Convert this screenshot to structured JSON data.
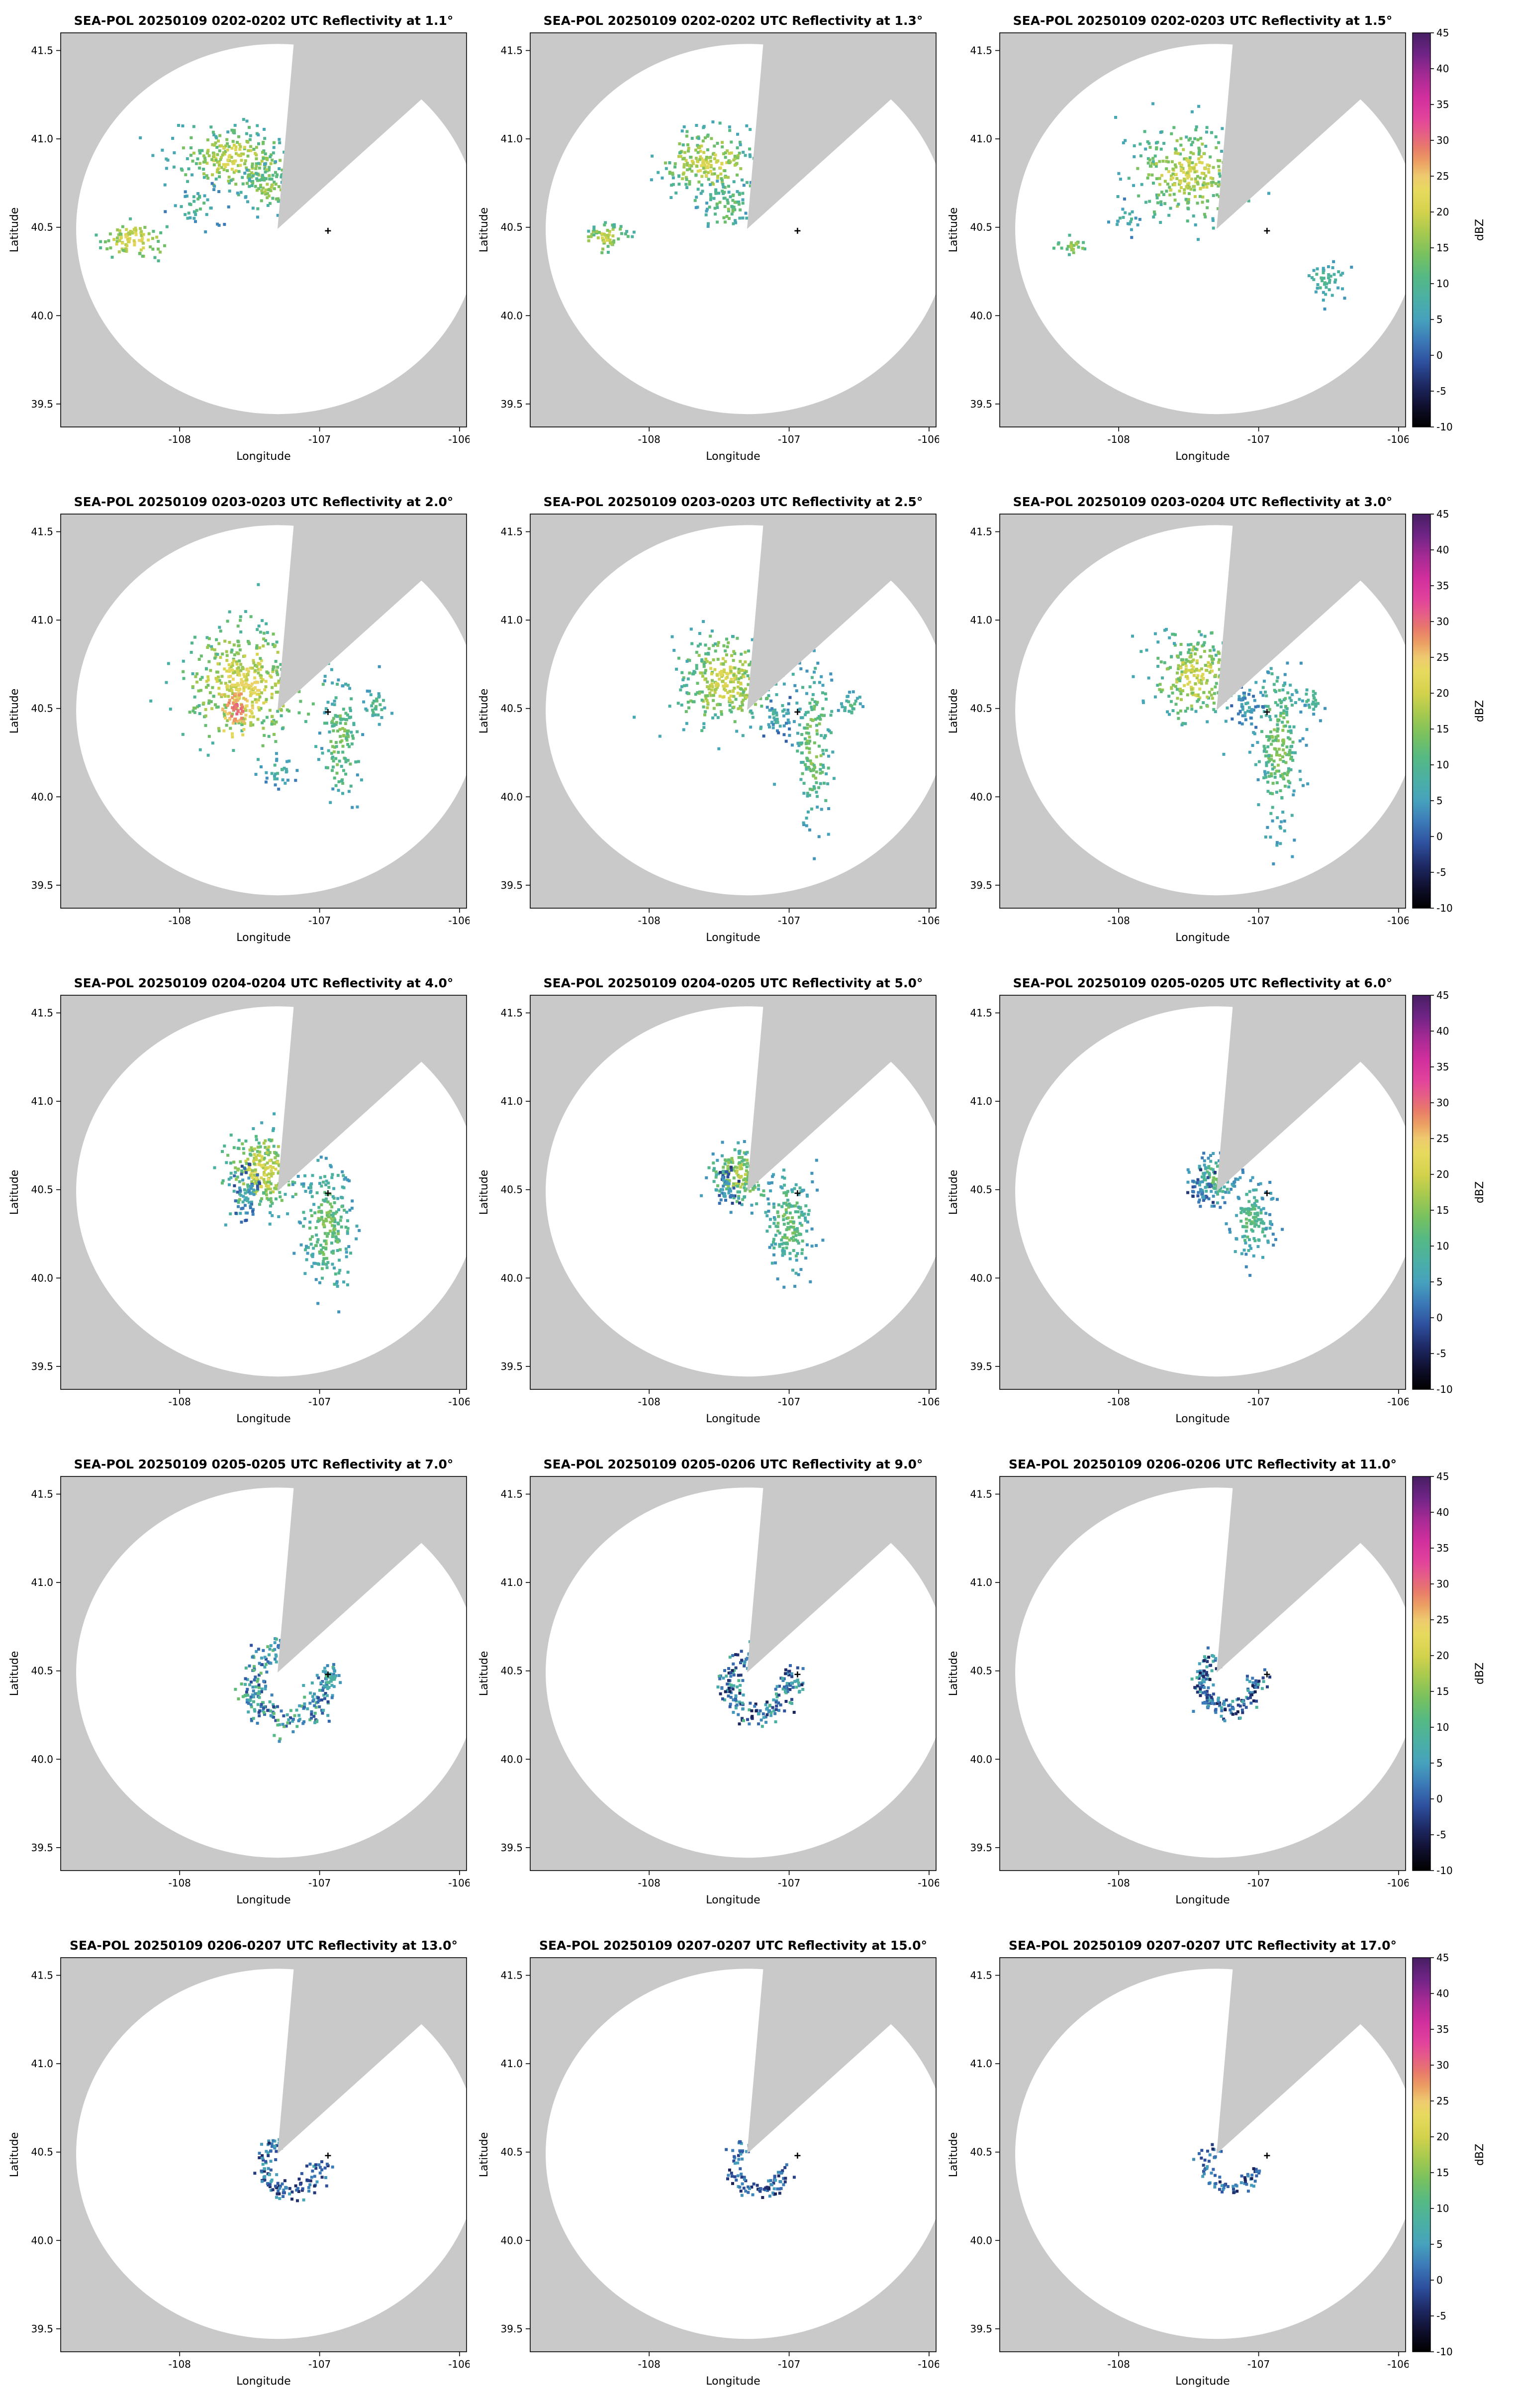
{
  "figure": {
    "background": "#ffffff",
    "panel_bg": "#c9c9c9",
    "rows": 5,
    "cols": 3
  },
  "axes": {
    "xlabel": "Longitude",
    "ylabel": "Latitude",
    "xticks": [
      "-108",
      "-107",
      "-106"
    ],
    "yticks": [
      "39.5",
      "40.0",
      "40.5",
      "41.0",
      "41.5"
    ],
    "xlim": [
      -108.85,
      -105.95
    ],
    "ylim": [
      39.37,
      41.6
    ]
  },
  "radar": {
    "center_lon": -107.3,
    "center_lat": 40.49,
    "scan_circle_color": "#ffffff",
    "blocked_sector_azimuth_deg": [
      5,
      48
    ],
    "site_marker": {
      "lon": -106.94,
      "lat": 40.48
    }
  },
  "colorbar": {
    "label": "dBZ",
    "min": -10,
    "max": 45,
    "ticks": [
      45,
      40,
      35,
      30,
      25,
      20,
      15,
      10,
      5,
      0,
      -5,
      -10
    ]
  },
  "colormap": [
    [
      -10,
      "#000000"
    ],
    [
      -7,
      "#101030"
    ],
    [
      -4,
      "#1e2a66"
    ],
    [
      -1,
      "#2e509e"
    ],
    [
      2,
      "#3b79b7"
    ],
    [
      5,
      "#46a2bd"
    ],
    [
      8,
      "#4bb0a4"
    ],
    [
      11,
      "#55b984"
    ],
    [
      14,
      "#77c160"
    ],
    [
      17,
      "#a5c94f"
    ],
    [
      20,
      "#d3d24c"
    ],
    [
      23,
      "#e7da5e"
    ],
    [
      25,
      "#eeca6f"
    ],
    [
      27,
      "#ec9f63"
    ],
    [
      29,
      "#e87a6a"
    ],
    [
      31,
      "#e55e86"
    ],
    [
      33,
      "#e2449b"
    ],
    [
      36,
      "#d12f9d"
    ],
    [
      39,
      "#a62a94"
    ],
    [
      42,
      "#702486"
    ],
    [
      45,
      "#471f63"
    ]
  ],
  "chart_data": [
    {
      "type": "heatmap",
      "title": "SEA-POL 20250109 0202-0202 UTC Reflectivity at 1.1°",
      "date": "20250109",
      "time_utc": "0202-0202",
      "elevation_deg": 1.1,
      "xlabel": "Longitude",
      "ylabel": "Latitude",
      "clim": [
        -10,
        45
      ],
      "colorbar_label": "dBZ",
      "echo_clusters": [
        {
          "kind": "blob",
          "lon": -107.62,
          "lat": 40.88,
          "sx": 0.21,
          "sy": 0.09,
          "n": 260,
          "dbz": [
            6,
            22
          ]
        },
        {
          "kind": "blob",
          "lon": -107.36,
          "lat": 40.72,
          "sx": 0.1,
          "sy": 0.07,
          "n": 90,
          "dbz": [
            5,
            18
          ]
        },
        {
          "kind": "blob",
          "lon": -108.33,
          "lat": 40.42,
          "sx": 0.11,
          "sy": 0.05,
          "n": 90,
          "dbz": [
            10,
            24
          ]
        },
        {
          "kind": "blob",
          "lon": -107.85,
          "lat": 40.62,
          "sx": 0.1,
          "sy": 0.06,
          "n": 40,
          "dbz": [
            2,
            12
          ]
        }
      ]
    },
    {
      "type": "heatmap",
      "title": "SEA-POL 20250109 0202-0202 UTC Reflectivity at 1.3°",
      "date": "20250109",
      "time_utc": "0202-0202",
      "elevation_deg": 1.3,
      "xlabel": "Longitude",
      "ylabel": "Latitude",
      "clim": [
        -10,
        45
      ],
      "colorbar_label": "dBZ",
      "echo_clusters": [
        {
          "kind": "blob",
          "lon": -107.58,
          "lat": 40.86,
          "sx": 0.18,
          "sy": 0.1,
          "n": 230,
          "dbz": [
            6,
            22
          ]
        },
        {
          "kind": "blob",
          "lon": -107.45,
          "lat": 40.62,
          "sx": 0.08,
          "sy": 0.07,
          "n": 70,
          "dbz": [
            4,
            16
          ]
        },
        {
          "kind": "blob",
          "lon": -108.3,
          "lat": 40.44,
          "sx": 0.09,
          "sy": 0.04,
          "n": 60,
          "dbz": [
            8,
            21
          ]
        }
      ]
    },
    {
      "type": "heatmap",
      "title": "SEA-POL 20250109 0202-0203 UTC Reflectivity at 1.5°",
      "date": "20250109",
      "time_utc": "0202-0203",
      "elevation_deg": 1.5,
      "xlabel": "Longitude",
      "ylabel": "Latitude",
      "clim": [
        -10,
        45
      ],
      "colorbar_label": "dBZ",
      "echo_clusters": [
        {
          "kind": "blob",
          "lon": -107.52,
          "lat": 40.8,
          "sx": 0.2,
          "sy": 0.13,
          "n": 300,
          "dbz": [
            6,
            22
          ]
        },
        {
          "kind": "blob",
          "lon": -108.33,
          "lat": 40.4,
          "sx": 0.06,
          "sy": 0.03,
          "n": 25,
          "dbz": [
            8,
            18
          ]
        },
        {
          "kind": "blob",
          "lon": -106.52,
          "lat": 40.2,
          "sx": 0.07,
          "sy": 0.05,
          "n": 45,
          "dbz": [
            4,
            12
          ]
        },
        {
          "kind": "blob",
          "lon": -107.95,
          "lat": 40.55,
          "sx": 0.06,
          "sy": 0.04,
          "n": 20,
          "dbz": [
            2,
            10
          ]
        }
      ]
    },
    {
      "type": "heatmap",
      "title": "SEA-POL 20250109 0203-0203 UTC Reflectivity at 2.0°",
      "date": "20250109",
      "time_utc": "0203-0203",
      "elevation_deg": 2.0,
      "xlabel": "Longitude",
      "ylabel": "Latitude",
      "clim": [
        -10,
        45
      ],
      "colorbar_label": "dBZ",
      "echo_clusters": [
        {
          "kind": "blob",
          "lon": -107.52,
          "lat": 40.63,
          "sx": 0.22,
          "sy": 0.16,
          "n": 420,
          "dbz": [
            8,
            24
          ]
        },
        {
          "kind": "blob",
          "lon": -107.6,
          "lat": 40.5,
          "sx": 0.06,
          "sy": 0.06,
          "n": 70,
          "dbz": [
            22,
            31
          ]
        },
        {
          "kind": "blob",
          "lon": -106.85,
          "lat": 40.32,
          "sx": 0.07,
          "sy": 0.18,
          "n": 130,
          "dbz": [
            4,
            16
          ]
        },
        {
          "kind": "blob",
          "lon": -106.6,
          "lat": 40.52,
          "sx": 0.05,
          "sy": 0.05,
          "n": 30,
          "dbz": [
            4,
            12
          ]
        },
        {
          "kind": "blob",
          "lon": -107.3,
          "lat": 40.15,
          "sx": 0.08,
          "sy": 0.05,
          "n": 30,
          "dbz": [
            2,
            10
          ]
        }
      ]
    },
    {
      "type": "heatmap",
      "title": "SEA-POL 20250109 0203-0203 UTC Reflectivity at 2.5°",
      "date": "20250109",
      "time_utc": "0203-0203",
      "elevation_deg": 2.5,
      "xlabel": "Longitude",
      "ylabel": "Latitude",
      "clim": [
        -10,
        45
      ],
      "colorbar_label": "dBZ",
      "echo_clusters": [
        {
          "kind": "blob",
          "lon": -107.45,
          "lat": 40.65,
          "sx": 0.18,
          "sy": 0.13,
          "n": 330,
          "dbz": [
            6,
            22
          ]
        },
        {
          "kind": "blob",
          "lon": -106.82,
          "lat": 40.28,
          "sx": 0.07,
          "sy": 0.22,
          "n": 170,
          "dbz": [
            4,
            16
          ]
        },
        {
          "kind": "blob",
          "lon": -107.08,
          "lat": 40.45,
          "sx": 0.05,
          "sy": 0.05,
          "n": 40,
          "dbz": [
            0,
            10
          ]
        },
        {
          "kind": "blob",
          "lon": -106.55,
          "lat": 40.52,
          "sx": 0.04,
          "sy": 0.04,
          "n": 25,
          "dbz": [
            4,
            12
          ]
        }
      ]
    },
    {
      "type": "heatmap",
      "title": "SEA-POL 20250109 0203-0204 UTC Reflectivity at 3.0°",
      "date": "20250109",
      "time_utc": "0203-0204",
      "elevation_deg": 3.0,
      "xlabel": "Longitude",
      "ylabel": "Latitude",
      "clim": [
        -10,
        45
      ],
      "colorbar_label": "dBZ",
      "echo_clusters": [
        {
          "kind": "blob",
          "lon": -107.45,
          "lat": 40.68,
          "sx": 0.16,
          "sy": 0.12,
          "n": 260,
          "dbz": [
            6,
            22
          ]
        },
        {
          "kind": "blob",
          "lon": -106.85,
          "lat": 40.3,
          "sx": 0.08,
          "sy": 0.24,
          "n": 230,
          "dbz": [
            4,
            16
          ]
        },
        {
          "kind": "blob",
          "lon": -107.08,
          "lat": 40.5,
          "sx": 0.05,
          "sy": 0.05,
          "n": 45,
          "dbz": [
            0,
            8
          ]
        },
        {
          "kind": "blob",
          "lon": -106.62,
          "lat": 40.55,
          "sx": 0.04,
          "sy": 0.04,
          "n": 25,
          "dbz": [
            4,
            12
          ]
        }
      ]
    },
    {
      "type": "heatmap",
      "title": "SEA-POL 20250109 0204-0204 UTC Reflectivity at 4.0°",
      "date": "20250109",
      "time_utc": "0204-0204",
      "elevation_deg": 4.0,
      "xlabel": "Longitude",
      "ylabel": "Latitude",
      "clim": [
        -10,
        45
      ],
      "colorbar_label": "dBZ",
      "echo_clusters": [
        {
          "kind": "blob",
          "lon": -107.4,
          "lat": 40.6,
          "sx": 0.14,
          "sy": 0.11,
          "n": 280,
          "dbz": [
            6,
            23
          ]
        },
        {
          "kind": "blob",
          "lon": -106.95,
          "lat": 40.28,
          "sx": 0.09,
          "sy": 0.18,
          "n": 220,
          "dbz": [
            4,
            16
          ]
        },
        {
          "kind": "blob",
          "lon": -107.52,
          "lat": 40.47,
          "sx": 0.05,
          "sy": 0.08,
          "n": 60,
          "dbz": [
            -2,
            8
          ]
        }
      ]
    },
    {
      "type": "heatmap",
      "title": "SEA-POL 20250109 0204-0205 UTC Reflectivity at 5.0°",
      "date": "20250109",
      "time_utc": "0204-0205",
      "elevation_deg": 5.0,
      "xlabel": "Longitude",
      "ylabel": "Latitude",
      "clim": [
        -10,
        45
      ],
      "colorbar_label": "dBZ",
      "echo_clusters": [
        {
          "kind": "blob",
          "lon": -107.35,
          "lat": 40.58,
          "sx": 0.11,
          "sy": 0.09,
          "n": 190,
          "dbz": [
            4,
            19
          ]
        },
        {
          "kind": "blob",
          "lon": -107.0,
          "lat": 40.3,
          "sx": 0.08,
          "sy": 0.14,
          "n": 170,
          "dbz": [
            4,
            15
          ]
        },
        {
          "kind": "blob",
          "lon": -107.45,
          "lat": 40.5,
          "sx": 0.04,
          "sy": 0.06,
          "n": 40,
          "dbz": [
            -3,
            6
          ]
        }
      ]
    },
    {
      "type": "heatmap",
      "title": "SEA-POL 20250109 0205-0205 UTC Reflectivity at 6.0°",
      "date": "20250109",
      "time_utc": "0205-0205",
      "elevation_deg": 6.0,
      "xlabel": "Longitude",
      "ylabel": "Latitude",
      "clim": [
        -10,
        45
      ],
      "colorbar_label": "dBZ",
      "echo_clusters": [
        {
          "kind": "blob",
          "lon": -107.3,
          "lat": 40.57,
          "sx": 0.09,
          "sy": 0.07,
          "n": 130,
          "dbz": [
            2,
            14
          ]
        },
        {
          "kind": "blob",
          "lon": -107.05,
          "lat": 40.32,
          "sx": 0.07,
          "sy": 0.11,
          "n": 130,
          "dbz": [
            3,
            13
          ]
        },
        {
          "kind": "blob",
          "lon": -107.4,
          "lat": 40.5,
          "sx": 0.04,
          "sy": 0.05,
          "n": 30,
          "dbz": [
            -3,
            6
          ]
        }
      ]
    },
    {
      "type": "heatmap",
      "title": "SEA-POL 20250109 0205-0205 UTC Reflectivity at 7.0°",
      "date": "20250109",
      "time_utc": "0205-0205",
      "elevation_deg": 7.0,
      "xlabel": "Longitude",
      "ylabel": "Latitude",
      "clim": [
        -10,
        45
      ],
      "colorbar_label": "dBZ",
      "echo_clusters": [
        {
          "kind": "arc",
          "lon": -107.22,
          "lat": 40.42,
          "r": 0.2,
          "rsig": 0.04,
          "a0": 95,
          "a1": 385,
          "n": 240,
          "dbz": [
            -2,
            13
          ]
        },
        {
          "kind": "blob",
          "lon": -106.93,
          "lat": 40.45,
          "sx": 0.04,
          "sy": 0.04,
          "n": 30,
          "dbz": [
            2,
            10
          ]
        }
      ]
    },
    {
      "type": "heatmap",
      "title": "SEA-POL 20250109 0205-0206 UTC Reflectivity at 9.0°",
      "date": "20250109",
      "time_utc": "0205-0206",
      "elevation_deg": 9.0,
      "xlabel": "Longitude",
      "ylabel": "Latitude",
      "clim": [
        -10,
        45
      ],
      "colorbar_label": "dBZ",
      "echo_clusters": [
        {
          "kind": "arc",
          "lon": -107.22,
          "lat": 40.43,
          "r": 0.17,
          "rsig": 0.035,
          "a0": 95,
          "a1": 390,
          "n": 210,
          "dbz": [
            -5,
            11
          ]
        }
      ]
    },
    {
      "type": "heatmap",
      "title": "SEA-POL 20250109 0206-0206 UTC Reflectivity at 11.0°",
      "date": "20250109",
      "time_utc": "0206-0206",
      "elevation_deg": 11.0,
      "xlabel": "Longitude",
      "ylabel": "Latitude",
      "clim": [
        -10,
        45
      ],
      "colorbar_label": "dBZ",
      "echo_clusters": [
        {
          "kind": "arc",
          "lon": -107.21,
          "lat": 40.43,
          "r": 0.155,
          "rsig": 0.03,
          "a0": 100,
          "a1": 385,
          "n": 180,
          "dbz": [
            -6,
            9
          ]
        }
      ]
    },
    {
      "type": "heatmap",
      "title": "SEA-POL 20250109 0206-0207 UTC Reflectivity at 13.0°",
      "date": "20250109",
      "time_utc": "0206-0207",
      "elevation_deg": 13.0,
      "xlabel": "Longitude",
      "ylabel": "Latitude",
      "clim": [
        -10,
        45
      ],
      "colorbar_label": "dBZ",
      "echo_clusters": [
        {
          "kind": "arc",
          "lon": -107.21,
          "lat": 40.42,
          "r": 0.15,
          "rsig": 0.028,
          "a0": 110,
          "a1": 370,
          "n": 130,
          "dbz": [
            -5,
            7
          ]
        }
      ]
    },
    {
      "type": "heatmap",
      "title": "SEA-POL 20250109 0207-0207 UTC Reflectivity at 15.0°",
      "date": "20250109",
      "time_utc": "0207-0207",
      "elevation_deg": 15.0,
      "xlabel": "Longitude",
      "ylabel": "Latitude",
      "clim": [
        -10,
        45
      ],
      "colorbar_label": "dBZ",
      "echo_clusters": [
        {
          "kind": "arc",
          "lon": -107.21,
          "lat": 40.42,
          "r": 0.14,
          "rsig": 0.025,
          "a0": 115,
          "a1": 365,
          "n": 100,
          "dbz": [
            -5,
            5
          ]
        }
      ]
    },
    {
      "type": "heatmap",
      "title": "SEA-POL 20250109 0207-0207 UTC Reflectivity at 17.0°",
      "date": "20250109",
      "time_utc": "0207-0207",
      "elevation_deg": 17.0,
      "xlabel": "Longitude",
      "ylabel": "Latitude",
      "clim": [
        -10,
        45
      ],
      "colorbar_label": "dBZ",
      "echo_clusters": [
        {
          "kind": "arc",
          "lon": -107.2,
          "lat": 40.42,
          "r": 0.13,
          "rsig": 0.022,
          "a0": 120,
          "a1": 360,
          "n": 75,
          "dbz": [
            -5,
            5
          ]
        }
      ]
    }
  ]
}
